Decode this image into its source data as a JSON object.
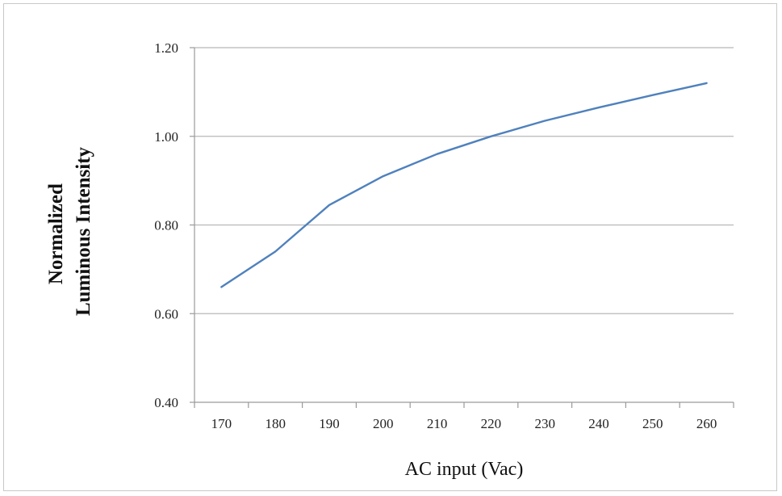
{
  "chart_data": {
    "type": "line",
    "title": "",
    "xlabel": "AC input (Vac)",
    "ylabel_lines": [
      "Normalized",
      "Luminous Intensity"
    ],
    "categories": [
      "170",
      "180",
      "190",
      "200",
      "210",
      "220",
      "230",
      "240",
      "250",
      "260"
    ],
    "y_tick_labels": [
      "0.40",
      "0.60",
      "0.80",
      "1.00",
      "1.20"
    ],
    "ylim": [
      0.4,
      1.2
    ],
    "grid": true,
    "legend": "none",
    "series": [
      {
        "color": "#4f81bd",
        "values": [
          0.66,
          0.74,
          0.845,
          0.91,
          0.96,
          1.0,
          1.035,
          1.065,
          1.093,
          1.12
        ]
      }
    ]
  }
}
